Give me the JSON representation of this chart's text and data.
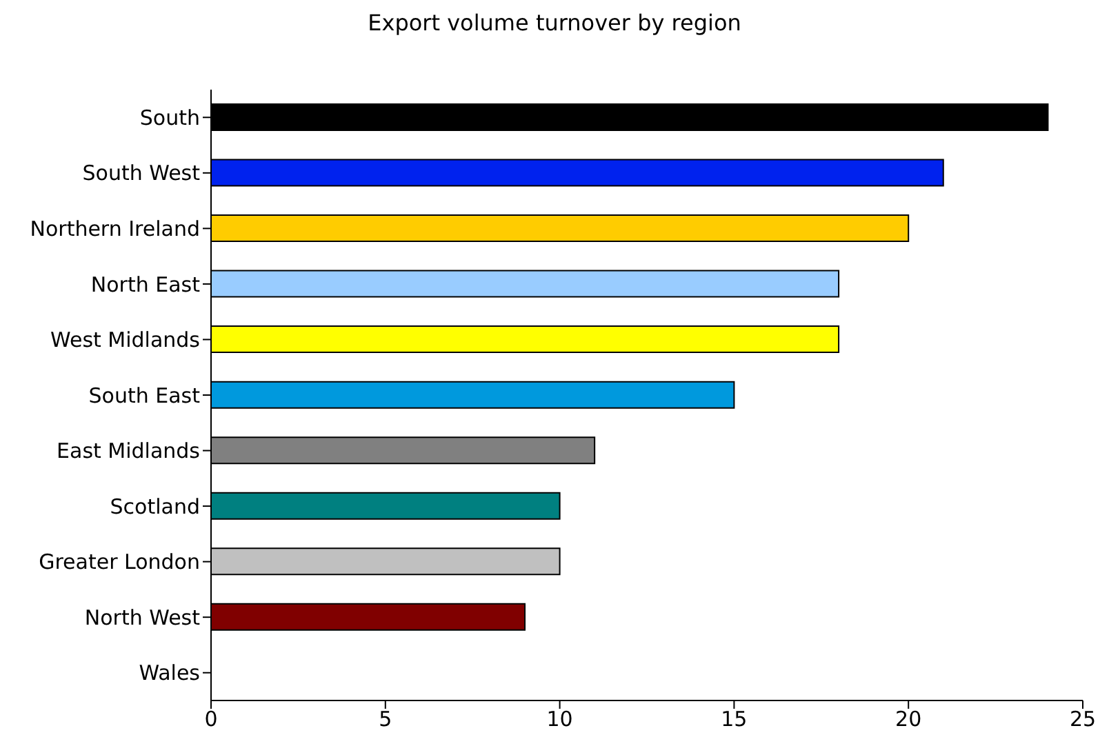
{
  "chart_data": {
    "type": "bar",
    "orientation": "horizontal",
    "title": "Export volume turnover by region",
    "categories": [
      "South",
      "South West",
      "Northern Ireland",
      "North East",
      "West Midlands",
      "South East",
      "East Midlands",
      "Scotland",
      "Greater London",
      "North West",
      "Wales"
    ],
    "values": [
      24,
      21,
      20,
      18,
      18,
      15,
      11,
      10,
      10,
      9,
      0
    ],
    "colors": [
      "#000000",
      "#0022ee",
      "#ffcc00",
      "#99ccff",
      "#ffff00",
      "#0099dd",
      "#808080",
      "#008080",
      "#c0c0c0",
      "#800000",
      "#ffffff"
    ],
    "xlim": [
      0,
      25
    ],
    "xticks": [
      0,
      5,
      10,
      15,
      20,
      25
    ],
    "grid": false,
    "legend": false
  }
}
